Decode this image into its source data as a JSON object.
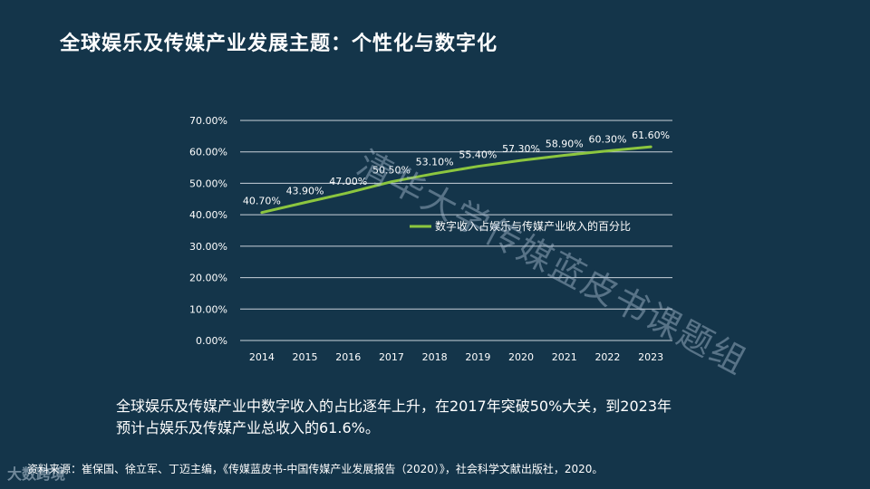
{
  "title": "全球娱乐及传媒产业发展主题：个性化与数字化",
  "watermark": "清华大学传媒蓝皮书课题组",
  "logo_text": "大数跨境",
  "summary_line1": "全球娱乐及传媒产业中数字收入的占比逐年上升，在2017年突破50%大关，到2023年",
  "summary_line2": "预计占娱乐及传媒产业总收入的61.6%。",
  "source": "资料来源：崔保国、徐立军、丁迈主编，《传媒蓝皮书-中国传媒产业发展报告（2020）》，社会科学文献出版社，2020。",
  "colors": {
    "background": "#14354a",
    "line": "#8cc63f",
    "grid": "#c9d2da",
    "text": "#ffffff"
  },
  "chart_data": {
    "type": "line",
    "categories": [
      "2014",
      "2015",
      "2016",
      "2017",
      "2018",
      "2019",
      "2020",
      "2021",
      "2022",
      "2023"
    ],
    "series": [
      {
        "name": "数字收入占娱乐与传媒产业收入的百分比",
        "values": [
          40.7,
          43.9,
          47.0,
          50.5,
          53.1,
          55.4,
          57.3,
          58.9,
          60.3,
          61.6
        ],
        "labels": [
          "40.70%",
          "43.90%",
          "47.00%",
          "50.50%",
          "53.10%",
          "55.40%",
          "57.30%",
          "58.90%",
          "60.30%",
          "61.60%"
        ]
      }
    ],
    "yticks": [
      "0.00%",
      "10.00%",
      "20.00%",
      "30.00%",
      "40.00%",
      "50.00%",
      "60.00%",
      "70.00%"
    ],
    "ylim": [
      0,
      70
    ],
    "grid": true,
    "legend_position": "inside-right"
  }
}
